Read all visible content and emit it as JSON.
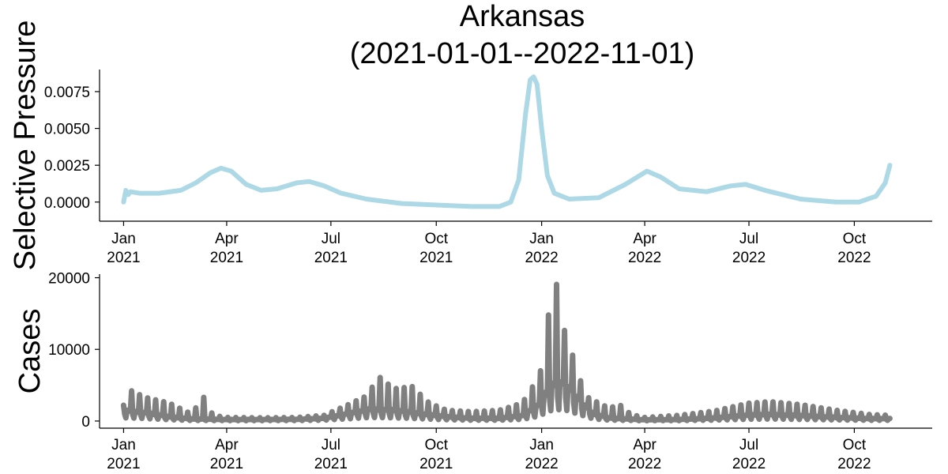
{
  "figure": {
    "title_line1": "Arkansas",
    "title_line2": "(2021-01-01--2022-11-01)"
  },
  "chart_data": [
    {
      "type": "line",
      "ylabel": "Selective Pressure",
      "color": "#add8e6",
      "xlim": [
        "2020-12-11",
        "2022-12-08"
      ],
      "ylim": [
        -0.0013,
        0.009
      ],
      "yticks": [
        "0.0000",
        "0.0025",
        "0.0050",
        "0.0075"
      ],
      "ytick_values": [
        0,
        0.0025,
        0.005,
        0.0075
      ],
      "xticks": [
        {
          "date": "2021-01-01",
          "label": [
            "Jan",
            "2021"
          ]
        },
        {
          "date": "2021-04-01",
          "label": [
            "Apr",
            "2021"
          ]
        },
        {
          "date": "2021-07-01",
          "label": [
            "Jul",
            "2021"
          ]
        },
        {
          "date": "2021-10-01",
          "label": [
            "Oct",
            "2021"
          ]
        },
        {
          "date": "2022-01-01",
          "label": [
            "Jan",
            "2022"
          ]
        },
        {
          "date": "2022-04-01",
          "label": [
            "Apr",
            "2022"
          ]
        },
        {
          "date": "2022-07-01",
          "label": [
            "Jul",
            "2022"
          ]
        },
        {
          "date": "2022-10-01",
          "label": [
            "Oct",
            "2022"
          ]
        }
      ],
      "series": [
        {
          "points": [
            [
              "2021-01-01",
              0.0
            ],
            [
              "2021-01-03",
              0.0008
            ],
            [
              "2021-01-05",
              0.0005
            ],
            [
              "2021-01-07",
              0.0007
            ],
            [
              "2021-01-15",
              0.0006
            ],
            [
              "2021-02-01",
              0.0006
            ],
            [
              "2021-02-20",
              0.0008
            ],
            [
              "2021-03-05",
              0.0013
            ],
            [
              "2021-03-18",
              0.002
            ],
            [
              "2021-03-27",
              0.0023
            ],
            [
              "2021-04-05",
              0.0021
            ],
            [
              "2021-04-18",
              0.0012
            ],
            [
              "2021-05-01",
              0.0008
            ],
            [
              "2021-05-15",
              0.0009
            ],
            [
              "2021-06-01",
              0.0013
            ],
            [
              "2021-06-12",
              0.0014
            ],
            [
              "2021-06-25",
              0.0011
            ],
            [
              "2021-07-10",
              0.0006
            ],
            [
              "2021-08-01",
              0.0002
            ],
            [
              "2021-09-01",
              -0.0001
            ],
            [
              "2021-10-01",
              -0.0002
            ],
            [
              "2021-11-01",
              -0.0003
            ],
            [
              "2021-11-25",
              -0.0003
            ],
            [
              "2021-12-05",
              0.0
            ],
            [
              "2021-12-12",
              0.0015
            ],
            [
              "2021-12-18",
              0.006
            ],
            [
              "2021-12-22",
              0.0083
            ],
            [
              "2021-12-25",
              0.0085
            ],
            [
              "2021-12-28",
              0.008
            ],
            [
              "2022-01-01",
              0.005
            ],
            [
              "2022-01-06",
              0.0018
            ],
            [
              "2022-01-12",
              0.0006
            ],
            [
              "2022-01-25",
              0.0002
            ],
            [
              "2022-02-20",
              0.0003
            ],
            [
              "2022-03-15",
              0.0012
            ],
            [
              "2022-04-03",
              0.0021
            ],
            [
              "2022-04-15",
              0.0017
            ],
            [
              "2022-05-01",
              0.0009
            ],
            [
              "2022-05-25",
              0.0007
            ],
            [
              "2022-06-15",
              0.0011
            ],
            [
              "2022-06-28",
              0.0012
            ],
            [
              "2022-07-15",
              0.0008
            ],
            [
              "2022-08-15",
              0.0002
            ],
            [
              "2022-09-15",
              0.0
            ],
            [
              "2022-10-05",
              0.0
            ],
            [
              "2022-10-20",
              0.0004
            ],
            [
              "2022-10-28",
              0.0013
            ],
            [
              "2022-11-01",
              0.0025
            ]
          ]
        }
      ]
    },
    {
      "type": "line",
      "ylabel": "Cases",
      "color": "#808080",
      "xlim": [
        "2020-12-11",
        "2022-12-08"
      ],
      "ylim": [
        -1000,
        20500
      ],
      "yticks": [
        "0",
        "10000",
        "20000"
      ],
      "ytick_values": [
        0,
        10000,
        20000
      ],
      "xticks": [
        {
          "date": "2021-01-01",
          "label": [
            "Jan",
            "2021"
          ]
        },
        {
          "date": "2021-04-01",
          "label": [
            "Apr",
            "2021"
          ]
        },
        {
          "date": "2021-07-01",
          "label": [
            "Jul",
            "2021"
          ]
        },
        {
          "date": "2021-10-01",
          "label": [
            "Oct",
            "2021"
          ]
        },
        {
          "date": "2022-01-01",
          "label": [
            "Jan",
            "2022"
          ]
        },
        {
          "date": "2022-04-01",
          "label": [
            "Apr",
            "2022"
          ]
        },
        {
          "date": "2022-07-01",
          "label": [
            "Jul",
            "2022"
          ]
        },
        {
          "date": "2022-10-01",
          "label": [
            "Oct",
            "2022"
          ]
        }
      ],
      "series": [
        {
          "weekly_base": [
            [
              "2021-01-01",
              1800
            ],
            [
              "2021-01-20",
              1400
            ],
            [
              "2021-02-10",
              700
            ],
            [
              "2021-03-01",
              350
            ],
            [
              "2021-04-01",
              250
            ],
            [
              "2021-05-01",
              250
            ],
            [
              "2021-06-01",
              280
            ],
            [
              "2021-06-25",
              450
            ],
            [
              "2021-07-15",
              1200
            ],
            [
              "2021-08-05",
              2000
            ],
            [
              "2021-08-25",
              1800
            ],
            [
              "2021-09-15",
              1300
            ],
            [
              "2021-10-10",
              700
            ],
            [
              "2021-11-01",
              450
            ],
            [
              "2021-11-25",
              450
            ],
            [
              "2021-12-15",
              900
            ],
            [
              "2021-12-28",
              2500
            ],
            [
              "2022-01-10",
              6000
            ],
            [
              "2022-01-20",
              6500
            ],
            [
              "2022-02-01",
              4000
            ],
            [
              "2022-02-15",
              1200
            ],
            [
              "2022-03-01",
              500
            ],
            [
              "2022-04-01",
              200
            ],
            [
              "2022-05-01",
              250
            ],
            [
              "2022-06-01",
              500
            ],
            [
              "2022-07-01",
              1000
            ],
            [
              "2022-07-20",
              1100
            ],
            [
              "2022-08-15",
              900
            ],
            [
              "2022-09-15",
              600
            ],
            [
              "2022-10-15",
              400
            ],
            [
              "2022-11-01",
              400
            ]
          ],
          "weekly_peak": [
            [
              "2021-01-01",
              2200
            ],
            [
              "2021-01-08",
              4200
            ],
            [
              "2021-01-20",
              3300
            ],
            [
              "2021-02-10",
              2500
            ],
            [
              "2021-03-01",
              1000
            ],
            [
              "2021-03-12",
              3300
            ],
            [
              "2021-03-20",
              800
            ],
            [
              "2021-04-01",
              500
            ],
            [
              "2021-05-01",
              450
            ],
            [
              "2021-06-01",
              500
            ],
            [
              "2021-06-25",
              800
            ],
            [
              "2021-07-15",
              2200
            ],
            [
              "2021-08-01",
              3500
            ],
            [
              "2021-08-12",
              6200
            ],
            [
              "2021-08-25",
              4500
            ],
            [
              "2021-09-10",
              4800
            ],
            [
              "2021-09-25",
              2500
            ],
            [
              "2021-10-10",
              1500
            ],
            [
              "2021-11-01",
              1300
            ],
            [
              "2021-11-25",
              1500
            ],
            [
              "2021-12-15",
              2500
            ],
            [
              "2021-12-25",
              5000
            ],
            [
              "2022-01-03",
              8000
            ],
            [
              "2022-01-08",
              16500
            ],
            [
              "2022-01-15",
              19500
            ],
            [
              "2022-01-22",
              11500
            ],
            [
              "2022-01-29",
              8800
            ],
            [
              "2022-02-08",
              3500
            ],
            [
              "2022-02-20",
              2500
            ],
            [
              "2022-03-01",
              1800
            ],
            [
              "2022-03-10",
              2300
            ],
            [
              "2022-03-20",
              900
            ],
            [
              "2022-04-01",
              500
            ],
            [
              "2022-05-01",
              800
            ],
            [
              "2022-06-01",
              1400
            ],
            [
              "2022-07-01",
              2500
            ],
            [
              "2022-07-20",
              2700
            ],
            [
              "2022-08-15",
              2300
            ],
            [
              "2022-09-15",
              1500
            ],
            [
              "2022-10-15",
              900
            ],
            [
              "2022-11-01",
              800
            ]
          ]
        }
      ]
    }
  ]
}
